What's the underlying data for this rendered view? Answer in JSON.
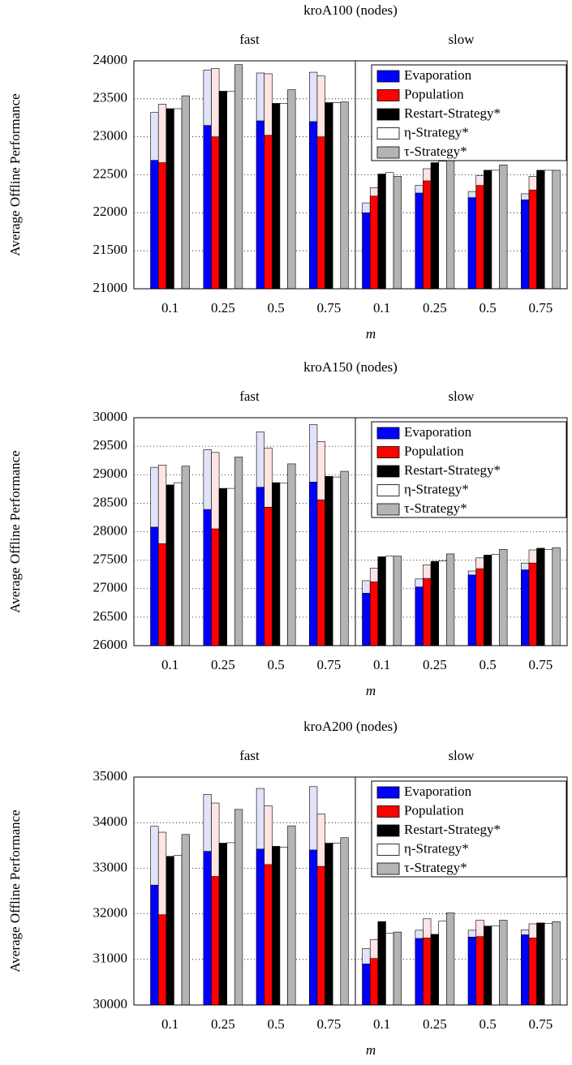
{
  "chart_data": [
    {
      "type": "bar",
      "title": "kroA100 (nodes)",
      "y_label": "Average Offline Performance",
      "x_label": "m",
      "groups": [
        "fast",
        "slow"
      ],
      "categories": [
        "0.1",
        "0.25",
        "0.5",
        "0.75",
        "0.1",
        "0.25",
        "0.5",
        "0.75"
      ],
      "ylim": [
        21000,
        24000
      ],
      "yticks": [
        21000,
        21500,
        22000,
        22500,
        23000,
        23500,
        24000
      ],
      "grid": true,
      "legend": "upper right",
      "series": [
        {
          "name": "Evaporation",
          "color": "#0000ff",
          "high_color": "#e2e2fa",
          "values": [
            22690,
            23150,
            23210,
            23200,
            22000,
            22260,
            22200,
            22170
          ],
          "high": [
            23320,
            23880,
            23840,
            23850,
            22130,
            22360,
            22280,
            22250
          ]
        },
        {
          "name": "Population",
          "color": "#ff0000",
          "high_color": "#ffe4e4",
          "values": [
            22660,
            23000,
            23020,
            23000,
            22220,
            22420,
            22360,
            22300
          ],
          "high": [
            23430,
            23900,
            23830,
            23800,
            22330,
            22580,
            22490,
            22480
          ]
        },
        {
          "name": "Restart-Strategy*",
          "color": "#000000",
          "values": [
            23370,
            23600,
            23440,
            23450,
            22510,
            22660,
            22560,
            22560
          ]
        },
        {
          "name": "η-Strategy*",
          "color": "#ffffff",
          "values": [
            23370,
            23600,
            23440,
            23450,
            22530,
            22680,
            22560,
            22560
          ]
        },
        {
          "name": "τ-Strategy*",
          "color": "#b4b4b4",
          "values": [
            23540,
            23950,
            23620,
            23460,
            22480,
            22760,
            22630,
            22560
          ]
        }
      ]
    },
    {
      "type": "bar",
      "title": "kroA150 (nodes)",
      "y_label": "Average Offline Performance",
      "x_label": "m",
      "groups": [
        "fast",
        "slow"
      ],
      "categories": [
        "0.1",
        "0.25",
        "0.5",
        "0.75",
        "0.1",
        "0.25",
        "0.5",
        "0.75"
      ],
      "ylim": [
        26000,
        30000
      ],
      "yticks": [
        26000,
        26500,
        27000,
        27500,
        28000,
        28500,
        29000,
        29500,
        30000
      ],
      "grid": true,
      "legend": "upper right",
      "series": [
        {
          "name": "Evaporation",
          "color": "#0000ff",
          "high_color": "#e2e2fa",
          "values": [
            28080,
            28390,
            28780,
            28870,
            26920,
            27030,
            27240,
            27330
          ],
          "high": [
            29130,
            29440,
            29750,
            29880,
            27140,
            27170,
            27310,
            27450
          ]
        },
        {
          "name": "Population",
          "color": "#ff0000",
          "high_color": "#ffe4e4",
          "values": [
            27790,
            28050,
            28430,
            28560,
            27120,
            27180,
            27350,
            27450
          ],
          "high": [
            29170,
            29390,
            29470,
            29580,
            27360,
            27420,
            27540,
            27680
          ]
        },
        {
          "name": "Restart-Strategy*",
          "color": "#000000",
          "values": [
            28820,
            28760,
            28860,
            28970,
            27560,
            27480,
            27590,
            27710
          ]
        },
        {
          "name": "η-Strategy*",
          "color": "#ffffff",
          "values": [
            28860,
            28760,
            28850,
            28960,
            27570,
            27490,
            27600,
            27690
          ]
        },
        {
          "name": "τ-Strategy*",
          "color": "#b4b4b4",
          "values": [
            29150,
            29310,
            29190,
            29060,
            27570,
            27610,
            27690,
            27720
          ]
        }
      ]
    },
    {
      "type": "bar",
      "title": "kroA200 (nodes)",
      "y_label": "Average Offline Performance",
      "x_label": "m",
      "groups": [
        "fast",
        "slow"
      ],
      "categories": [
        "0.1",
        "0.25",
        "0.5",
        "0.75",
        "0.1",
        "0.25",
        "0.5",
        "0.75"
      ],
      "ylim": [
        30000,
        35000
      ],
      "yticks": [
        30000,
        31000,
        32000,
        33000,
        34000,
        35000
      ],
      "grid": true,
      "legend": "upper right",
      "series": [
        {
          "name": "Evaporation",
          "color": "#0000ff",
          "high_color": "#e2e2fa",
          "values": [
            32630,
            33370,
            33420,
            33400,
            30900,
            31460,
            31490,
            31540
          ],
          "high": [
            33920,
            34620,
            34750,
            34790,
            31240,
            31640,
            31640,
            31650
          ]
        },
        {
          "name": "Population",
          "color": "#ff0000",
          "high_color": "#ffe4e4",
          "values": [
            31980,
            32820,
            33080,
            33040,
            31020,
            31470,
            31500,
            31470
          ],
          "high": [
            33790,
            34430,
            34370,
            34190,
            31430,
            31890,
            31860,
            31780
          ]
        },
        {
          "name": "Restart-Strategy*",
          "color": "#000000",
          "values": [
            33260,
            33550,
            33480,
            33550,
            31830,
            31550,
            31730,
            31800
          ]
        },
        {
          "name": "η-Strategy*",
          "color": "#ffffff",
          "values": [
            33280,
            33560,
            33460,
            33550,
            31570,
            31840,
            31740,
            31790
          ]
        },
        {
          "name": "τ-Strategy*",
          "color": "#b4b4b4",
          "values": [
            33740,
            34290,
            33930,
            33670,
            31600,
            32020,
            31860,
            31830
          ]
        }
      ]
    }
  ]
}
